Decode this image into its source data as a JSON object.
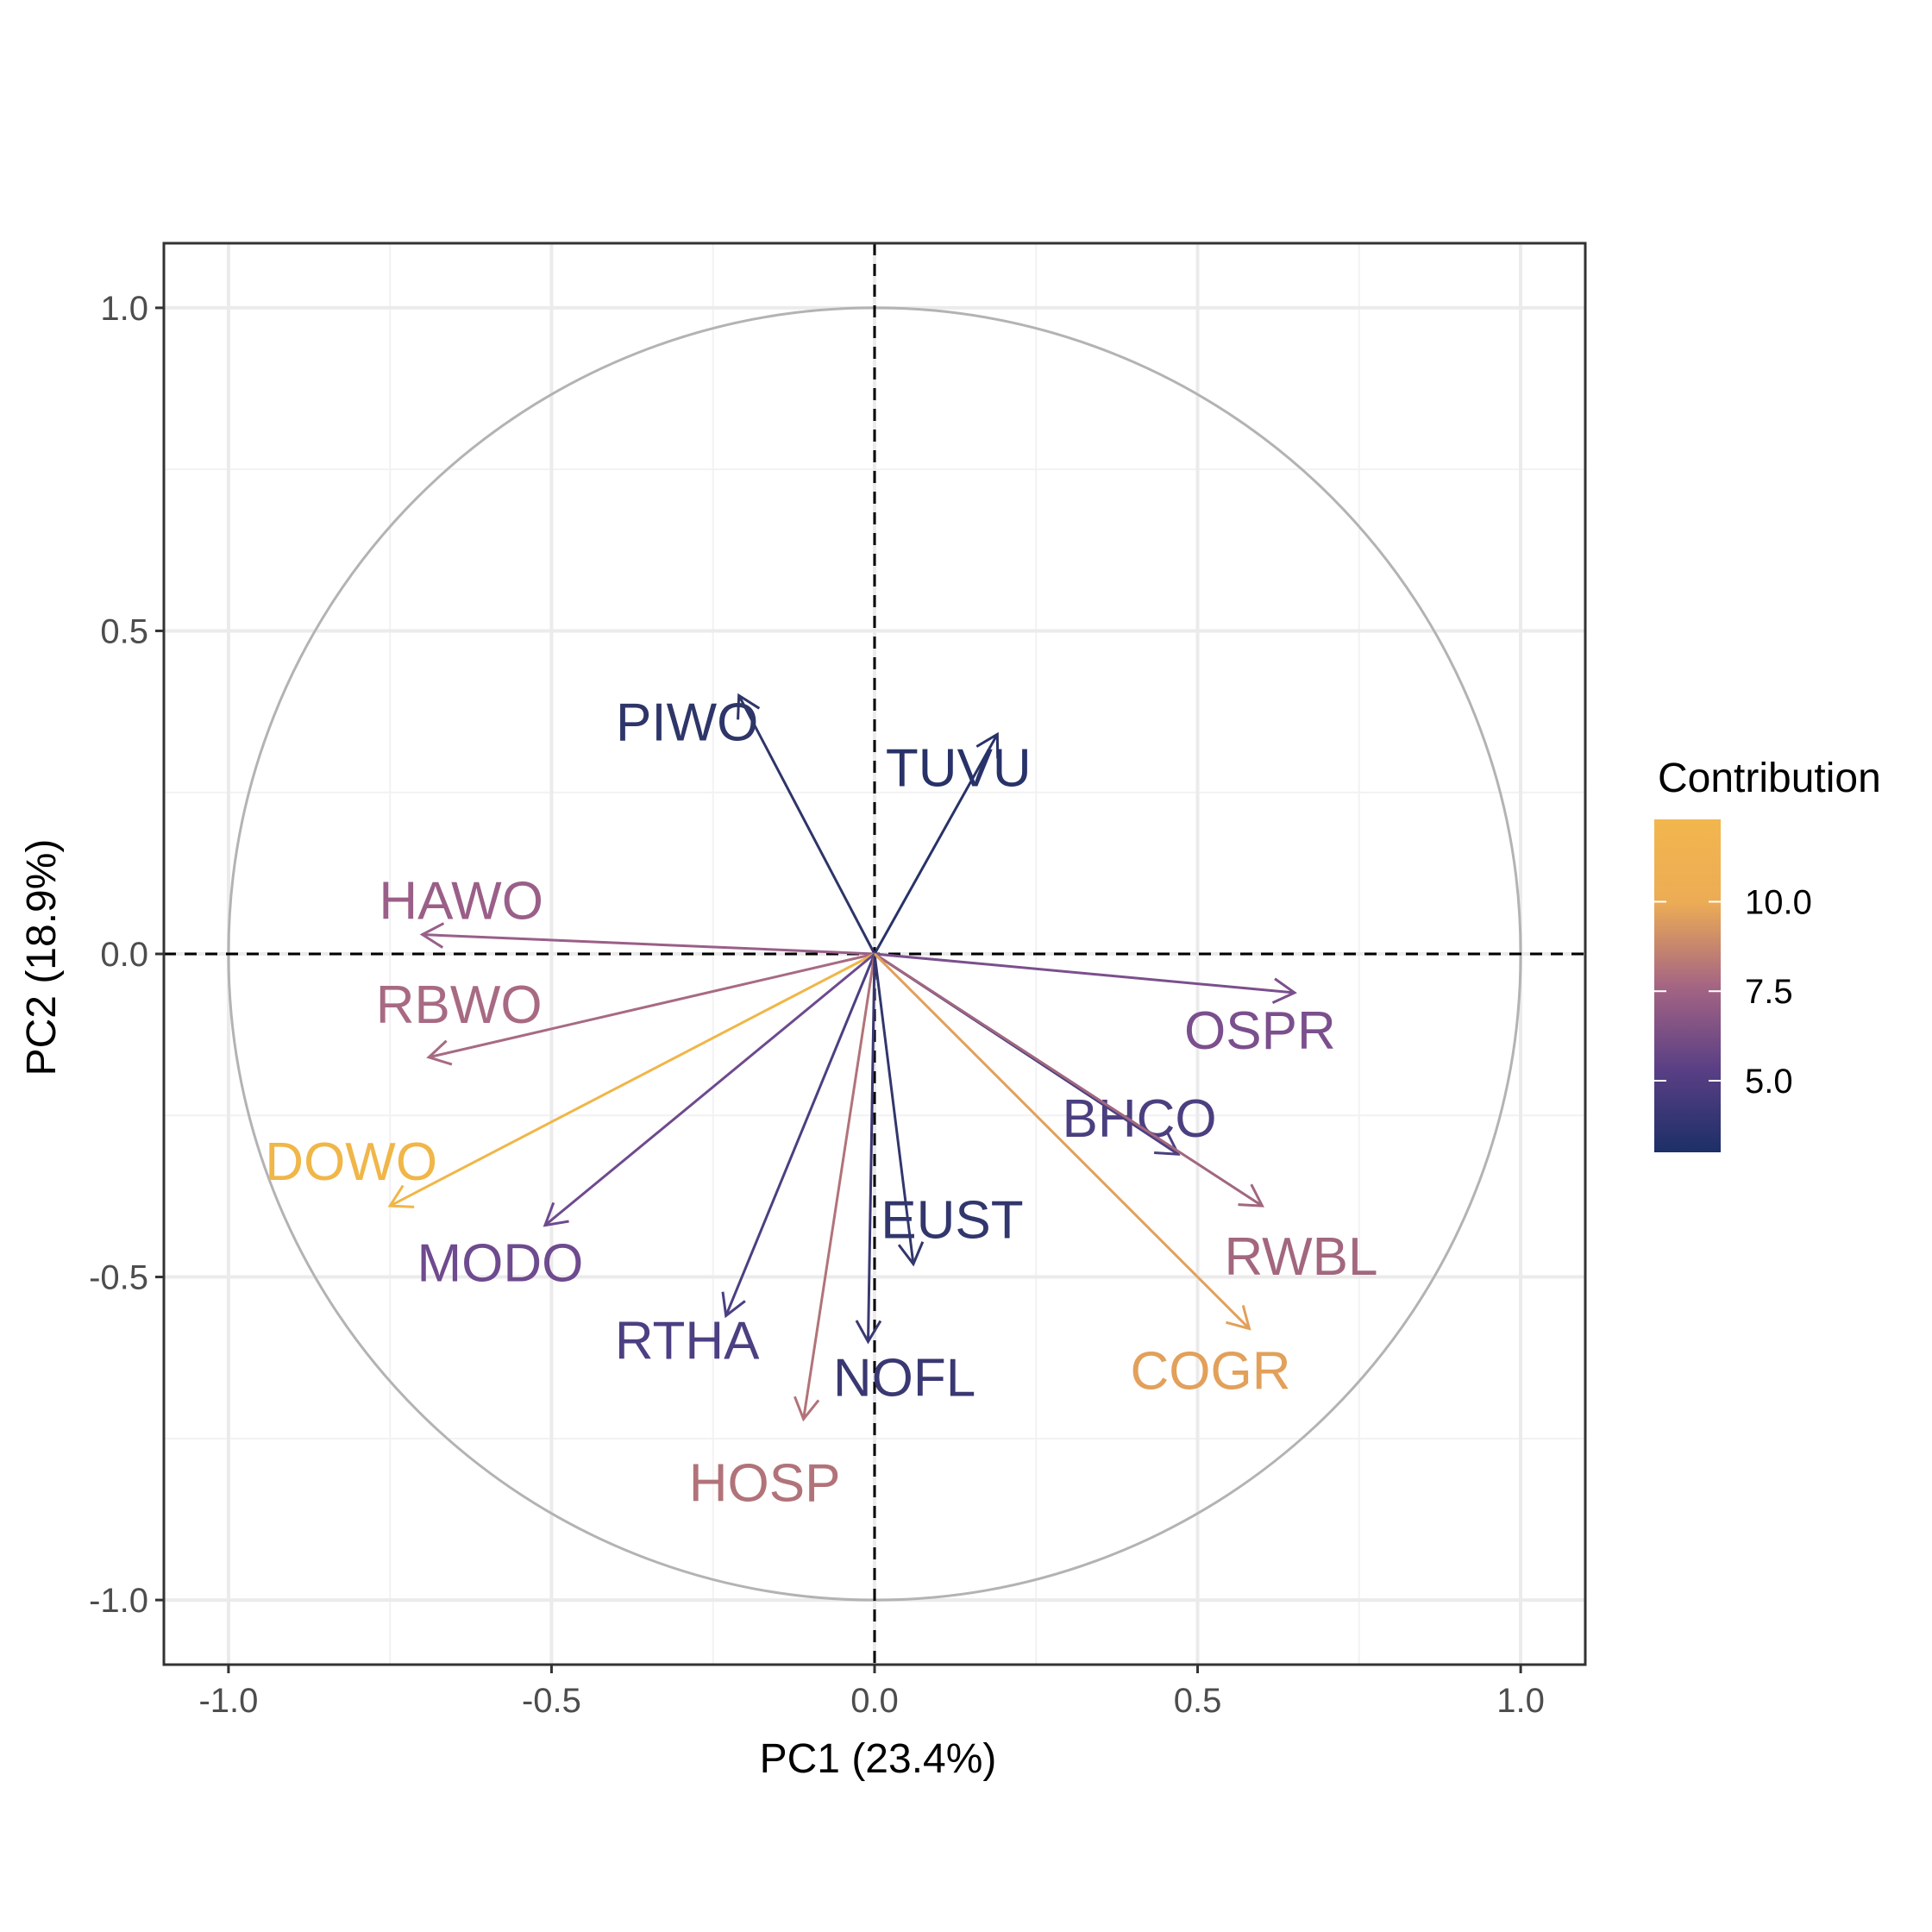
{
  "chart_data": {
    "type": "scatter",
    "subtype": "pca-variables-correlation-circle",
    "xlabel": "PC1 (23.4%)",
    "ylabel": "PC2 (18.9%)",
    "xlim": [
      -1.1,
      1.1
    ],
    "ylim": [
      -1.1,
      1.1
    ],
    "x_ticks": [
      -1.0,
      -0.5,
      0.0,
      0.5,
      1.0
    ],
    "x_tick_labels": [
      "-1.0",
      "-0.5",
      "0.0",
      "0.5",
      "1.0"
    ],
    "y_ticks": [
      -1.0,
      -0.5,
      0.0,
      0.5,
      1.0
    ],
    "y_tick_labels": [
      "-1.0",
      "-0.5",
      "0.0",
      "0.5",
      "1.0"
    ],
    "grid": true,
    "unit_circle": true,
    "variables": [
      {
        "label": "PIWO",
        "x": -0.21,
        "y": 0.4,
        "contribution": 4.2,
        "color": "#2e3568"
      },
      {
        "label": "TUVU",
        "x": 0.19,
        "y": 0.34,
        "contribution": 3.8,
        "color": "#283268"
      },
      {
        "label": "HAWO",
        "x": -0.7,
        "y": 0.03,
        "contribution": 8.4,
        "color": "#9a5f88"
      },
      {
        "label": "RBWO",
        "x": -0.69,
        "y": -0.16,
        "contribution": 9.3,
        "color": "#a86a83"
      },
      {
        "label": "DOWO",
        "x": -0.75,
        "y": -0.39,
        "contribution": 12.0,
        "color": "#f0b648"
      },
      {
        "label": "MODO",
        "x": -0.51,
        "y": -0.42,
        "contribution": 6.8,
        "color": "#6e4a8e"
      },
      {
        "label": "RTHA",
        "x": -0.23,
        "y": -0.56,
        "contribution": 5.7,
        "color": "#4c3f82"
      },
      {
        "label": "HOSP",
        "x": -0.11,
        "y": -0.72,
        "contribution": 9.9,
        "color": "#b17379"
      },
      {
        "label": "NOFL",
        "x": -0.01,
        "y": -0.6,
        "contribution": 4.6,
        "color": "#3a3872"
      },
      {
        "label": "EUST",
        "x": 0.06,
        "y": -0.48,
        "contribution": 4.1,
        "color": "#31366c"
      },
      {
        "label": "OSPR",
        "x": 0.65,
        "y": -0.06,
        "contribution": 7.0,
        "color": "#7b4f8d"
      },
      {
        "label": "BHCO",
        "x": 0.47,
        "y": -0.31,
        "contribution": 5.3,
        "color": "#4b3f80"
      },
      {
        "label": "RWBL",
        "x": 0.6,
        "y": -0.39,
        "contribution": 8.7,
        "color": "#a2677f"
      },
      {
        "label": "COGR",
        "x": 0.58,
        "y": -0.58,
        "contribution": 11.3,
        "color": "#e2a05a"
      }
    ],
    "legend": {
      "title": "Contribution",
      "placement": "right",
      "range": [
        3.0,
        12.3
      ],
      "ticks": [
        5.0,
        7.5,
        10.0
      ],
      "tick_labels": [
        "5.0",
        "7.5",
        "10.0"
      ],
      "gradient": [
        "#1c2f66",
        "#5a3f85",
        "#a56583",
        "#ecac55",
        "#f2b64d"
      ]
    }
  }
}
